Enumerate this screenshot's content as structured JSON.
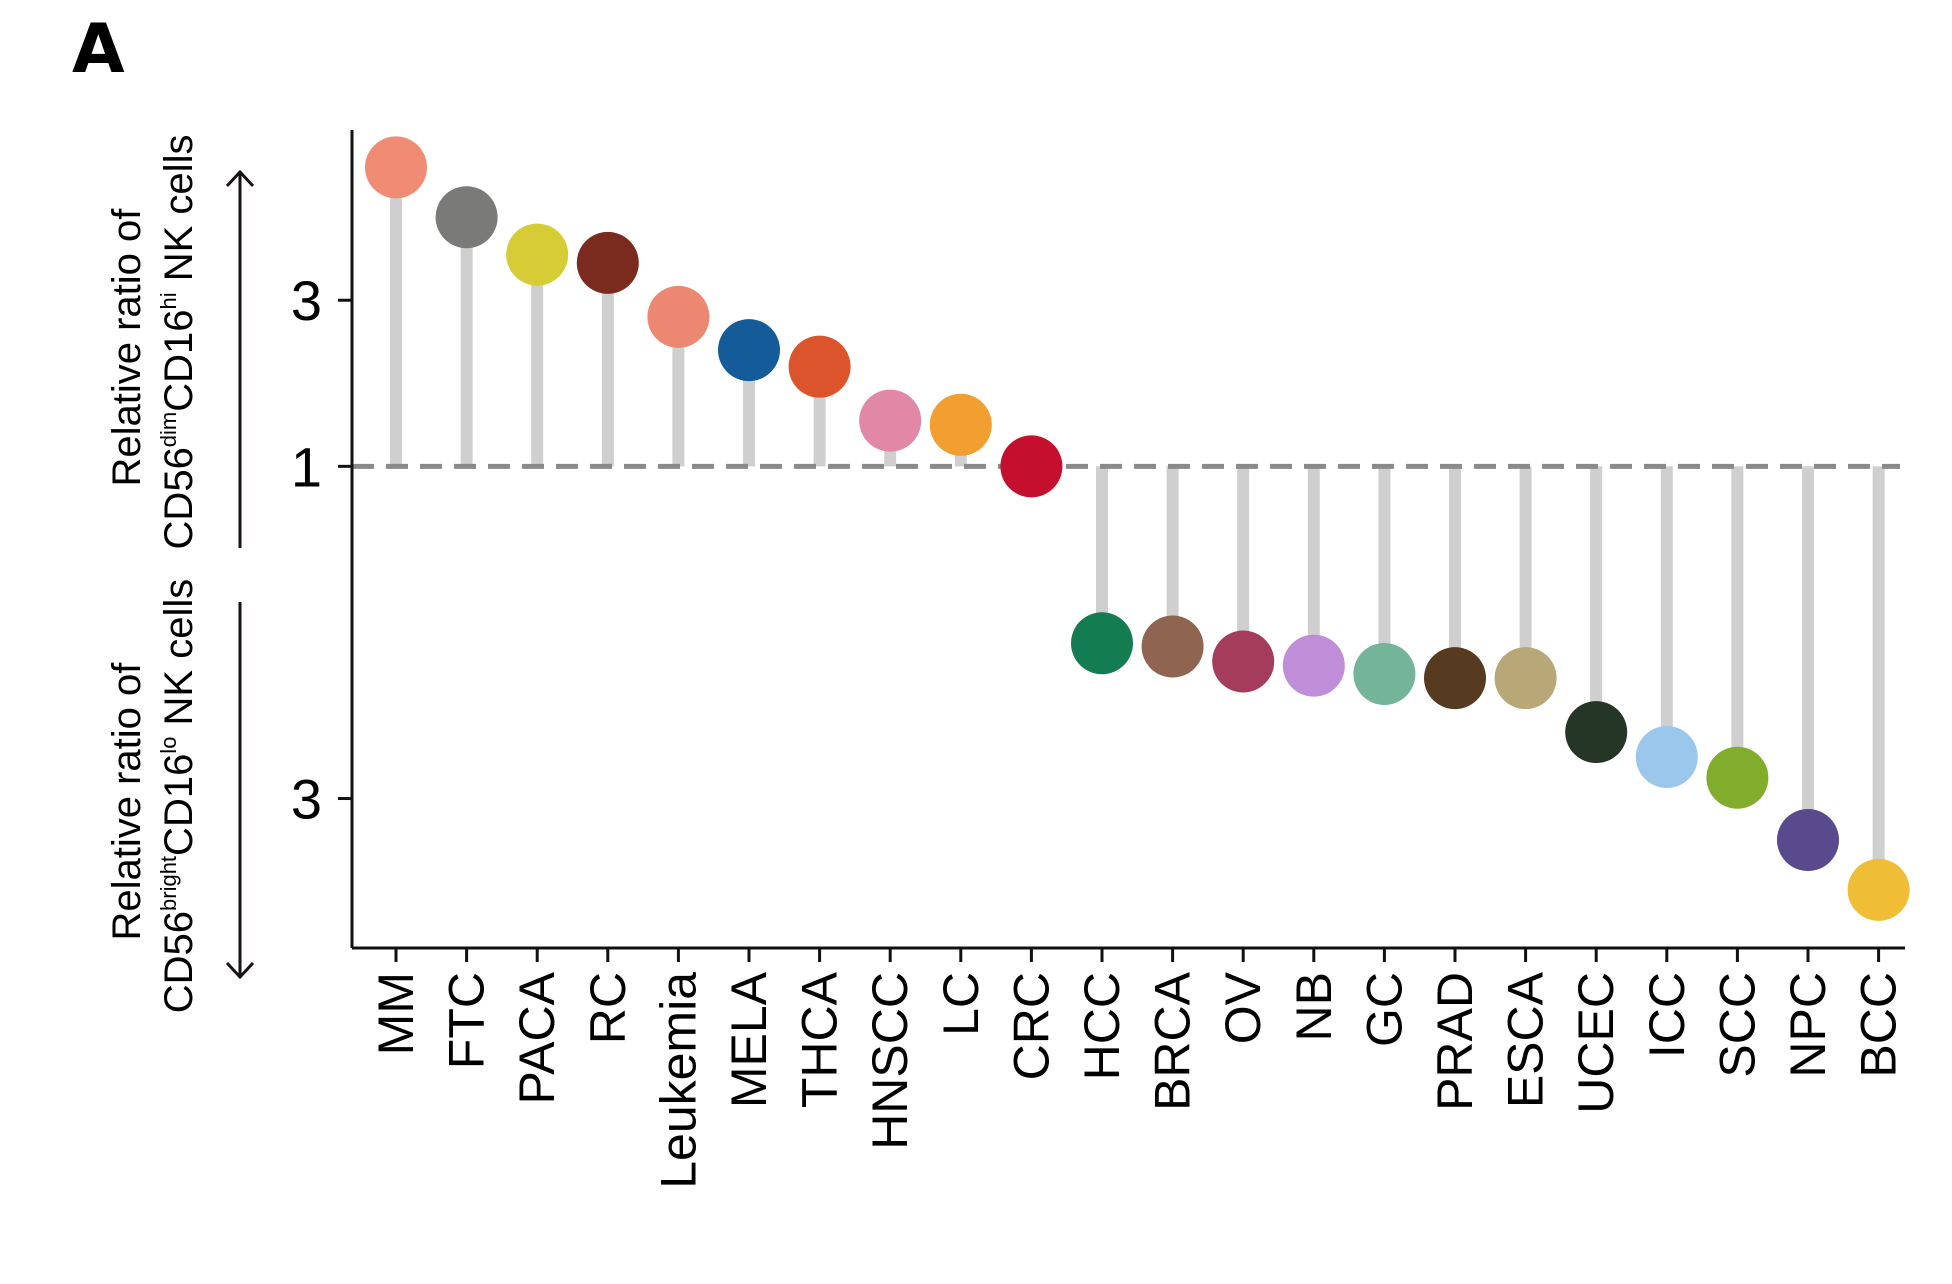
{
  "panel": "A",
  "colors": {
    "axis": "#111111",
    "stem": "#cfcfcf",
    "reference": "#8a8a8a",
    "arrow": "#1a1212"
  },
  "chart_data": {
    "type": "lollipop",
    "reference_value": 1,
    "y_ticks": [
      {
        "label": "3",
        "value": 3
      },
      {
        "label": "1",
        "value": 1
      },
      {
        "label": "3",
        "value": -3
      }
    ],
    "y_label_upper": {
      "line1": "Relative ratio of",
      "pre": "CD56",
      "sup1": "dim",
      "mid": "CD16",
      "sup2": "hi",
      "post": " NK cells"
    },
    "y_label_lower": {
      "line1": "Relative ratio of",
      "pre": "CD56",
      "sup1": "bright",
      "mid": "CD16",
      "sup2": "lo",
      "post": " NK cells"
    },
    "ylim": [
      -4.8,
      5.05
    ],
    "points": [
      {
        "category": "MM",
        "value": 4.6,
        "color": "#f08c74"
      },
      {
        "category": "FTC",
        "value": 4.0,
        "color": "#7a7a78"
      },
      {
        "category": "PACA",
        "value": 3.55,
        "color": "#d6cc35"
      },
      {
        "category": "RC",
        "value": 3.45,
        "color": "#7b2a1e"
      },
      {
        "category": "Leukemia",
        "value": 2.8,
        "color": "#ec8872"
      },
      {
        "category": "MELA",
        "value": 2.4,
        "color": "#135c99"
      },
      {
        "category": "THCA",
        "value": 2.2,
        "color": "#dc542c"
      },
      {
        "category": "HNSCC",
        "value": 1.55,
        "color": "#e088a6"
      },
      {
        "category": "LC",
        "value": 1.5,
        "color": "#f29e30"
      },
      {
        "category": "CRC",
        "value": 1.0,
        "color": "#c4102e"
      },
      {
        "category": "HCC",
        "value": -1.13,
        "color": "#147c51"
      },
      {
        "category": "BRCA",
        "value": -1.17,
        "color": "#8f6551"
      },
      {
        "category": "OV",
        "value": -1.35,
        "color": "#a63c5c"
      },
      {
        "category": "NB",
        "value": -1.4,
        "color": "#c08dd8"
      },
      {
        "category": "GC",
        "value": -1.5,
        "color": "#74b59a"
      },
      {
        "category": "PRAD",
        "value": -1.55,
        "color": "#573b21"
      },
      {
        "category": "ESCA",
        "value": -1.55,
        "color": "#b9a877"
      },
      {
        "category": "UCEC",
        "value": -2.2,
        "color": "#263626"
      },
      {
        "category": "ICC",
        "value": -2.5,
        "color": "#9cc7ec"
      },
      {
        "category": "SCC",
        "value": -2.75,
        "color": "#82ad2c"
      },
      {
        "category": "NPC",
        "value": -3.5,
        "color": "#584a8d"
      },
      {
        "category": "BCC",
        "value": -4.1,
        "color": "#f0bd37"
      }
    ]
  }
}
